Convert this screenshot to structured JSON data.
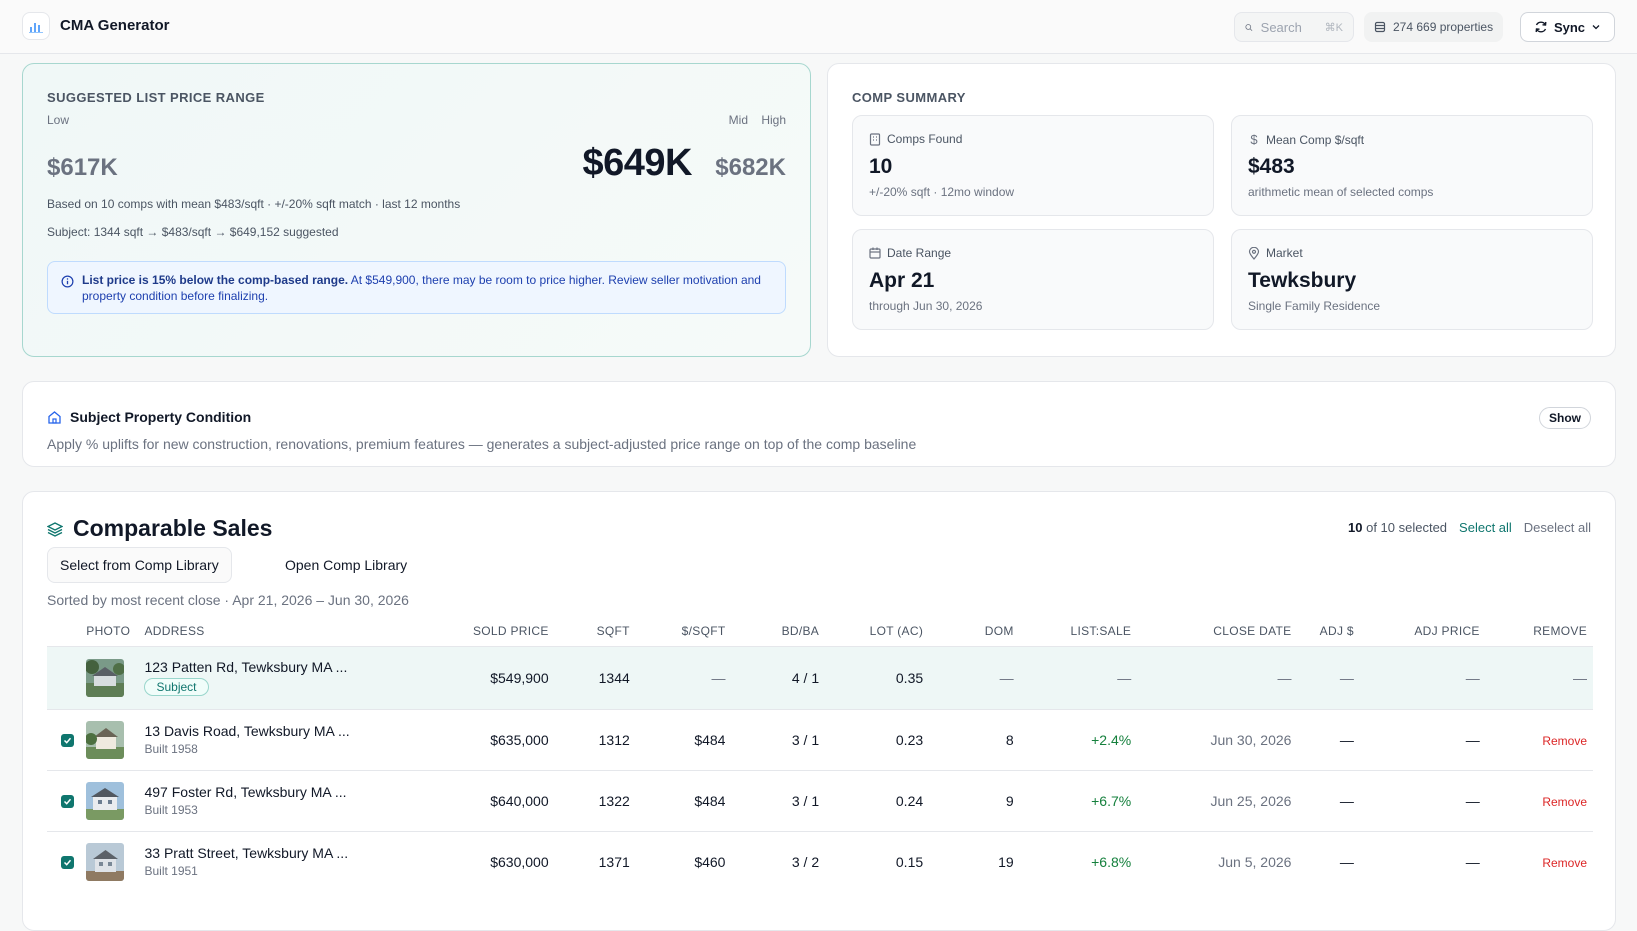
{
  "header": {
    "app_title": "CMA Generator",
    "search_placeholder": "Search",
    "search_shortcut": "⌘K",
    "properties_count": "274 669 properties",
    "sync_label": "Sync"
  },
  "price_range": {
    "section_label": "Suggested List Price Range",
    "low_label": "Low",
    "mid_label": "Mid",
    "high_label": "High",
    "low_value": "$617K",
    "mid_value": "$649K",
    "high_value": "$682K",
    "basis": "Based on 10 comps with mean $483/sqft · +/-20% sqft match · last 12 months",
    "subject_line": "Subject: 1344 sqft → $483/sqft → $649,152 suggested",
    "alert_bold": "List price is 15% below the comp-based range.",
    "alert_text": " At $549,900, there may be room to price higher. Review seller motivation and property condition before finalizing."
  },
  "comp_summary": {
    "section_label": "Comp Summary",
    "tiles": [
      {
        "label": "Comps Found",
        "value": "10",
        "sub": "+/-20% sqft · 12mo window",
        "icon": "building-icon"
      },
      {
        "label": "Mean Comp $/sqft",
        "value": "$483",
        "sub": "arithmetic mean of selected comps",
        "icon": "dollar-icon"
      },
      {
        "label": "Date Range",
        "value": "Apr 21",
        "sub": "through Jun 30, 2026",
        "icon": "calendar-icon"
      },
      {
        "label": "Market",
        "value": "Tewksbury",
        "sub": "Single Family Residence",
        "icon": "map-pin-icon"
      }
    ]
  },
  "condition": {
    "title": "Subject Property Condition",
    "description": "Apply % uplifts for new construction, renovations, premium features — generates a subject-adjusted price range on top of the comp baseline",
    "show_label": "Show"
  },
  "comps": {
    "title": "Comparable Sales",
    "selected_count": "10",
    "selected_suffix": "of 10 selected",
    "select_all": "Select all",
    "deselect_all": "Deselect all",
    "select_library": "Select from Comp Library",
    "open_library": "Open Comp Library",
    "sorted_text": "Sorted by most recent close · Apr 21, 2026 – Jun 30, 2026",
    "columns": [
      "Photo",
      "Address",
      "Sold Price",
      "SQFT",
      "$/SQFT",
      "BD/BA",
      "Lot (AC)",
      "DOM",
      "List:Sale",
      "Close Date",
      "Adj $",
      "Adj Price",
      "Remove"
    ],
    "subject": {
      "address": "123 Patten Rd, Tewksbury MA ...",
      "badge": "Subject",
      "sold_price": "$549,900",
      "sqft": "1344",
      "ppsf": "—",
      "bdba": "4 / 1",
      "lot": "0.35",
      "dom": "—",
      "list_sale": "—",
      "close_date": "—",
      "adj": "—",
      "adj_price": "—",
      "remove": "—"
    },
    "rows": [
      {
        "address": "13 Davis Road, Tewksbury MA ...",
        "built": "Built 1958",
        "sold_price": "$635,000",
        "sqft": "1312",
        "ppsf": "$484",
        "bdba": "3 / 1",
        "lot": "0.23",
        "dom": "8",
        "list_sale": "+2.4%",
        "close_date": "Jun 30, 2026",
        "adj": "—",
        "adj_price": "—",
        "remove": "Remove"
      },
      {
        "address": "497 Foster Rd, Tewksbury MA ...",
        "built": "Built 1953",
        "sold_price": "$640,000",
        "sqft": "1322",
        "ppsf": "$484",
        "bdba": "3 / 1",
        "lot": "0.24",
        "dom": "9",
        "list_sale": "+6.7%",
        "close_date": "Jun 25, 2026",
        "adj": "—",
        "adj_price": "—",
        "remove": "Remove"
      },
      {
        "address": "33 Pratt Street, Tewksbury MA ...",
        "built": "Built 1951",
        "sold_price": "$630,000",
        "sqft": "1371",
        "ppsf": "$460",
        "bdba": "3 / 2",
        "lot": "0.15",
        "dom": "19",
        "list_sale": "+6.8%",
        "close_date": "Jun 5, 2026",
        "adj": "—",
        "adj_price": "—",
        "remove": "Remove"
      }
    ]
  },
  "colors": {
    "accent": "#0f766e",
    "positive": "#15803d",
    "danger": "#dc2626",
    "info": "#1e40af"
  }
}
